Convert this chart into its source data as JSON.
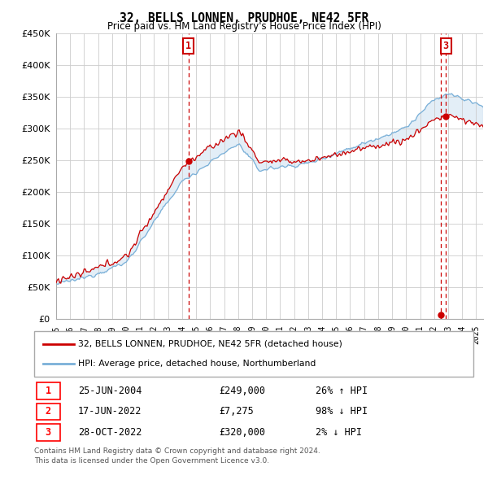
{
  "title": "32, BELLS LONNEN, PRUDHOE, NE42 5FR",
  "subtitle": "Price paid vs. HM Land Registry's House Price Index (HPI)",
  "ylim": [
    0,
    450000
  ],
  "yticks": [
    0,
    50000,
    100000,
    150000,
    200000,
    250000,
    300000,
    350000,
    400000,
    450000
  ],
  "ytick_labels": [
    "£0",
    "£50K",
    "£100K",
    "£150K",
    "£200K",
    "£250K",
    "£300K",
    "£350K",
    "£400K",
    "£450K"
  ],
  "hpi_color": "#7ab0d8",
  "price_color": "#cc0000",
  "fill_color": "#dceaf5",
  "t1_year": 2004.46,
  "t1_price": 249000,
  "t2_year": 2022.46,
  "t2_price": 7275,
  "t3_year": 2022.83,
  "t3_price": 320000,
  "transaction1": {
    "label": "1",
    "date": "25-JUN-2004",
    "price": "£249,000",
    "hpi": "26% ↑ HPI"
  },
  "transaction2": {
    "label": "2",
    "date": "17-JUN-2022",
    "price": "£7,275",
    "hpi": "98% ↓ HPI"
  },
  "transaction3": {
    "label": "3",
    "date": "28-OCT-2022",
    "price": "£320,000",
    "hpi": "2% ↓ HPI"
  },
  "legend_line1": "32, BELLS LONNEN, PRUDHOE, NE42 5FR (detached house)",
  "legend_line2": "HPI: Average price, detached house, Northumberland",
  "footnote1": "Contains HM Land Registry data © Crown copyright and database right 2024.",
  "footnote2": "This data is licensed under the Open Government Licence v3.0.",
  "background_color": "#ffffff",
  "grid_color": "#cccccc",
  "xmin": 1995,
  "xmax": 2025.5
}
